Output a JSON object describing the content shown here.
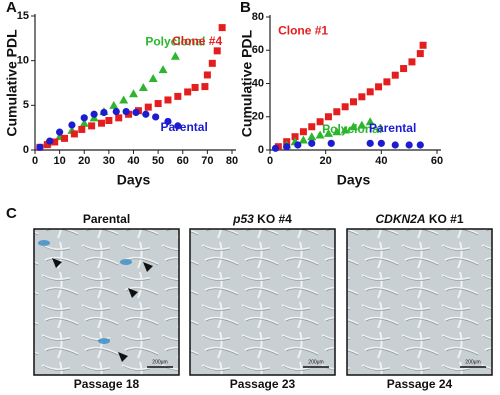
{
  "chart_data": [
    {
      "type": "scatter",
      "panel": "A",
      "xlabel": "Days",
      "ylabel": "Cumulative PDL",
      "xlim": [
        0,
        80
      ],
      "xticks": [
        0,
        10,
        20,
        30,
        40,
        50,
        60,
        70,
        80
      ],
      "ylim": [
        0,
        15
      ],
      "yticks": [
        0,
        5,
        10,
        15
      ],
      "series": [
        {
          "name": "Polyclonal",
          "color": "#2db52d",
          "marker": "triangle",
          "x": [
            5,
            10,
            15,
            20,
            24,
            28,
            32,
            36,
            40,
            44,
            48,
            52,
            57
          ],
          "values": [
            0.8,
            1.5,
            2.2,
            3.0,
            3.6,
            4.3,
            5.0,
            5.6,
            6.3,
            7.0,
            8.0,
            9.0,
            10.5
          ]
        },
        {
          "name": "Clone #4",
          "color": "#e41e1e",
          "marker": "square",
          "x": [
            2,
            5,
            8,
            12,
            16,
            19,
            23,
            27,
            30,
            34,
            38,
            42,
            46,
            50,
            54,
            58,
            62,
            65,
            69,
            70,
            72,
            74,
            76
          ],
          "values": [
            0.3,
            0.6,
            0.9,
            1.3,
            1.8,
            2.3,
            2.7,
            3.0,
            3.3,
            3.6,
            4.0,
            4.4,
            4.8,
            5.2,
            5.6,
            6.0,
            6.5,
            7.0,
            7.1,
            8.4,
            9.7,
            11.1,
            13.7
          ]
        },
        {
          "name": "Parental",
          "color": "#1c1cd0",
          "marker": "circle",
          "x": [
            2,
            6,
            10,
            15,
            20,
            24,
            28,
            33,
            37,
            41,
            45,
            49,
            54,
            58
          ],
          "values": [
            0.3,
            1.0,
            2.0,
            2.8,
            3.6,
            4.0,
            4.2,
            4.3,
            4.3,
            4.2,
            4.0,
            3.7,
            3.2,
            2.7
          ]
        }
      ]
    },
    {
      "type": "scatter",
      "panel": "B",
      "xlabel": "Days",
      "ylabel": "Cumulative PDL",
      "xlim": [
        0,
        60
      ],
      "xticks": [
        0,
        20,
        40,
        60
      ],
      "ylim": [
        0,
        80
      ],
      "yticks": [
        0,
        20,
        40,
        60,
        80
      ],
      "series": [
        {
          "name": "Clone #1",
          "color": "#e41e1e",
          "marker": "square",
          "x": [
            3,
            6,
            9,
            12,
            15,
            18,
            21,
            24,
            27,
            30,
            33,
            36,
            39,
            42,
            45,
            48,
            51,
            54,
            55
          ],
          "values": [
            2,
            5,
            8,
            11,
            14,
            17,
            20,
            23,
            26,
            29,
            32,
            35,
            38,
            41,
            45,
            49,
            53,
            58,
            63
          ]
        },
        {
          "name": "Polyclonal",
          "color": "#2db52d",
          "marker": "triangle",
          "x": [
            6,
            9,
            12,
            15,
            18,
            21,
            24,
            27,
            30,
            33,
            36
          ],
          "values": [
            3,
            5,
            6,
            8,
            9,
            10,
            11,
            12,
            14,
            15,
            17
          ]
        },
        {
          "name": "Parental",
          "color": "#1c1cd0",
          "marker": "circle",
          "x": [
            2,
            6,
            10,
            15,
            22,
            36,
            40,
            45,
            50,
            54
          ],
          "values": [
            1,
            2,
            3,
            4,
            4,
            4,
            4,
            3,
            3,
            3
          ]
        }
      ]
    }
  ],
  "figure_c": {
    "panel": "C",
    "images": [
      {
        "title": {
          "italic": "",
          "text": "Parental"
        },
        "caption": "Passage  18",
        "scale": "200μm"
      },
      {
        "title": {
          "italic": "p53",
          "text": " KO #4"
        },
        "caption": "Passage 23",
        "scale": "200μm"
      },
      {
        "title": {
          "italic": "CDKN2A",
          "text": " KO #1"
        },
        "caption": "Passage 24",
        "scale": "200μm"
      }
    ]
  }
}
